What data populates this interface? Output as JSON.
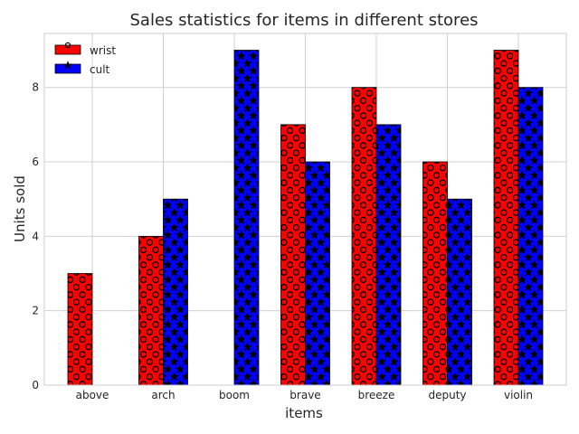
{
  "chart_data": {
    "type": "bar",
    "title": "Sales statistics for items in different stores",
    "xlabel": "items",
    "ylabel": "Units sold",
    "categories": [
      "above",
      "arch",
      "boom",
      "brave",
      "breeze",
      "deputy",
      "violin"
    ],
    "series": [
      {
        "name": "wrist",
        "values": [
          3,
          4,
          0,
          7,
          8,
          6,
          9
        ],
        "color": "#ff0000",
        "hatch": "circles"
      },
      {
        "name": "cult",
        "values": [
          0,
          5,
          9,
          6,
          7,
          5,
          8
        ],
        "color": "#0000ff",
        "hatch": "stars"
      }
    ],
    "ylim": [
      0,
      9.45
    ],
    "yticks": [
      0,
      2,
      4,
      6,
      8
    ],
    "grid": true,
    "legend_position": "top-left"
  }
}
